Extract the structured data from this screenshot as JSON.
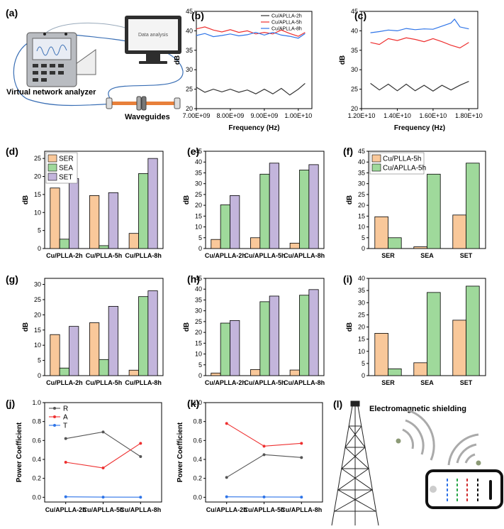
{
  "colors": {
    "ser": "#f9c89a",
    "sea": "#9fd99b",
    "set": "#c3b5dc",
    "r": "#555555",
    "a": "#ee3030",
    "t": "#2e74e8",
    "l2": "#333333",
    "l5": "#ee3030",
    "l8": "#2e74e8"
  },
  "schematic": {
    "label": "(a)",
    "monitor_text": "Data analysis",
    "analyzer_label": "Virtual network analyzer",
    "waveguide_label": "Waveguides"
  },
  "illustration": {
    "label": "(l)",
    "title": "Electromagnetic shielding"
  },
  "chart_data": [
    {
      "id": "b",
      "label": "(b)",
      "type": "line",
      "xlabel": "Frequency (Hz)",
      "ylabel": "dB",
      "xlim": [
        7000000000.0,
        10400000000.0
      ],
      "ylim": [
        20,
        45
      ],
      "xticks": [
        7000000000.0,
        8000000000.0,
        9000000000.0,
        10000000000.0
      ],
      "xtick_labels": [
        "7.00E+09",
        "8.00E+09",
        "9.00E+09",
        "1.00E+10"
      ],
      "yticks": [
        20,
        25,
        30,
        35,
        40,
        45
      ],
      "series": [
        {
          "name": "Cu/APLLA-2h",
          "color_key": "l2",
          "x": [
            7000000000.0,
            7250000000.0,
            7500000000.0,
            7750000000.0,
            8000000000.0,
            8250000000.0,
            8500000000.0,
            8750000000.0,
            9000000000.0,
            9250000000.0,
            9500000000.0,
            9750000000.0,
            10000000000.0,
            10200000000.0
          ],
          "y": [
            25.5,
            24.2,
            25.0,
            24.3,
            25.0,
            24.2,
            24.8,
            23.8,
            25.0,
            23.8,
            25.2,
            23.5,
            25.0,
            26.5
          ]
        },
        {
          "name": "Cu/APLLA-5h",
          "color_key": "l5",
          "x": [
            7000000000.0,
            7250000000.0,
            7500000000.0,
            7750000000.0,
            8000000000.0,
            8250000000.0,
            8500000000.0,
            8750000000.0,
            9000000000.0,
            9250000000.0,
            9500000000.0,
            9750000000.0,
            10000000000.0,
            10200000000.0
          ],
          "y": [
            40.5,
            41.0,
            40.2,
            39.7,
            40.3,
            39.6,
            40.0,
            39.2,
            39.6,
            39.2,
            40.2,
            39.3,
            38.6,
            39.6
          ]
        },
        {
          "name": "Cu/APLLA-8h",
          "color_key": "l8",
          "x": [
            7000000000.0,
            7250000000.0,
            7500000000.0,
            7750000000.0,
            8000000000.0,
            8250000000.0,
            8500000000.0,
            8750000000.0,
            9000000000.0,
            9250000000.0,
            9500000000.0,
            9750000000.0,
            10000000000.0,
            10200000000.0
          ],
          "y": [
            38.8,
            39.3,
            38.5,
            38.8,
            39.2,
            38.7,
            39.0,
            39.6,
            38.9,
            39.6,
            38.9,
            38.6,
            38.1,
            39.3
          ]
        }
      ]
    },
    {
      "id": "c",
      "label": "(c)",
      "type": "line",
      "xlabel": "Frequency (Hz)",
      "ylabel": "dB",
      "xlim": [
        12000000000.0,
        18500000000.0
      ],
      "ylim": [
        20,
        45
      ],
      "xticks": [
        12000000000.0,
        14000000000.0,
        16000000000.0,
        18000000000.0
      ],
      "xtick_labels": [
        "1.20E+10",
        "1.40E+10",
        "1.60E+10",
        "1.80E+10"
      ],
      "yticks": [
        20,
        25,
        30,
        35,
        40,
        45
      ],
      "series": [
        {
          "name": "Cu/APLLA-2h",
          "color_key": "l2",
          "x": [
            12500000000.0,
            13000000000.0,
            13500000000.0,
            14000000000.0,
            14500000000.0,
            15000000000.0,
            15500000000.0,
            16000000000.0,
            16500000000.0,
            17000000000.0,
            17500000000.0,
            18000000000.0
          ],
          "y": [
            26.5,
            24.8,
            26.3,
            24.6,
            26.3,
            24.6,
            26.0,
            24.5,
            26.0,
            24.8,
            26.0,
            27.0
          ]
        },
        {
          "name": "Cu/APLLA-5h",
          "color_key": "l5",
          "x": [
            12500000000.0,
            13000000000.0,
            13500000000.0,
            14000000000.0,
            14500000000.0,
            15000000000.0,
            15500000000.0,
            16000000000.0,
            16500000000.0,
            17000000000.0,
            17500000000.0,
            18000000000.0
          ],
          "y": [
            37.0,
            36.5,
            38.0,
            37.5,
            38.2,
            37.8,
            37.2,
            38.0,
            37.2,
            36.3,
            35.6,
            37.0
          ]
        },
        {
          "name": "Cu/APLLA-8h",
          "color_key": "l8",
          "x": [
            12500000000.0,
            13000000000.0,
            13500000000.0,
            14000000000.0,
            14500000000.0,
            15000000000.0,
            15500000000.0,
            16000000000.0,
            16500000000.0,
            17000000000.0,
            17200000000.0,
            17500000000.0,
            18000000000.0
          ],
          "y": [
            39.5,
            39.8,
            40.2,
            40.0,
            40.6,
            40.3,
            40.5,
            40.4,
            41.2,
            42.0,
            43.0,
            41.0,
            40.5
          ]
        }
      ]
    },
    {
      "id": "d",
      "label": "(d)",
      "type": "bar",
      "ylabel": "dB",
      "ylim": [
        0,
        27
      ],
      "yticks": [
        0,
        5,
        10,
        15,
        20,
        25
      ],
      "categories": [
        "Cu/PLLA-2h",
        "Cu/PLLA-5h",
        "Cu/PLLA-8h"
      ],
      "legend": "top-left",
      "series": [
        {
          "name": "SER",
          "color_key": "ser",
          "values": [
            16.8,
            14.7,
            4.2
          ]
        },
        {
          "name": "SEA",
          "color_key": "sea",
          "values": [
            2.6,
            0.8,
            20.8
          ]
        },
        {
          "name": "SET",
          "color_key": "set",
          "values": [
            19.4,
            15.5,
            25.0
          ]
        }
      ]
    },
    {
      "id": "e",
      "label": "(e)",
      "type": "bar",
      "ylabel": "dB",
      "ylim": [
        0,
        45
      ],
      "yticks": [
        0,
        5,
        10,
        15,
        20,
        25,
        30,
        35,
        40,
        45
      ],
      "categories": [
        "Cu/APLLA-2h",
        "Cu/APLLA-5h",
        "Cu/APLLA-8h"
      ],
      "series": [
        {
          "name": "SER",
          "color_key": "ser",
          "values": [
            4.2,
            5.0,
            2.5
          ]
        },
        {
          "name": "SEA",
          "color_key": "sea",
          "values": [
            20.2,
            34.4,
            36.3
          ]
        },
        {
          "name": "SET",
          "color_key": "set",
          "values": [
            24.5,
            39.5,
            38.8
          ]
        }
      ]
    },
    {
      "id": "f",
      "label": "(f)",
      "type": "bar",
      "ylabel": "dB",
      "ylim": [
        0,
        45
      ],
      "yticks": [
        0,
        5,
        10,
        15,
        20,
        25,
        30,
        35,
        40,
        45
      ],
      "categories": [
        "SER",
        "SEA",
        "SET"
      ],
      "legend": "top-left",
      "series": [
        {
          "name": "Cu/PLLA-5h",
          "color_key": "ser",
          "values": [
            14.7,
            0.8,
            15.5
          ]
        },
        {
          "name": "Cu/APLLA-5h",
          "color_key": "sea",
          "values": [
            5.0,
            34.4,
            39.5
          ]
        }
      ]
    },
    {
      "id": "g",
      "label": "(g)",
      "type": "bar",
      "ylabel": "dB",
      "ylim": [
        0,
        32
      ],
      "yticks": [
        0,
        5,
        10,
        15,
        20,
        25,
        30
      ],
      "categories": [
        "Cu/PLLA-2h",
        "Cu/PLLA-5h",
        "Cu/PLLA-8h"
      ],
      "series": [
        {
          "name": "SER",
          "color_key": "ser",
          "values": [
            13.5,
            17.4,
            1.8
          ]
        },
        {
          "name": "SEA",
          "color_key": "sea",
          "values": [
            2.5,
            5.3,
            26.0
          ]
        },
        {
          "name": "SET",
          "color_key": "set",
          "values": [
            16.2,
            22.8,
            27.9
          ]
        }
      ]
    },
    {
      "id": "h",
      "label": "(h)",
      "type": "bar",
      "ylabel": "dB",
      "ylim": [
        0,
        45
      ],
      "yticks": [
        0,
        5,
        10,
        15,
        20,
        25,
        30,
        35,
        40,
        45
      ],
      "categories": [
        "Cu/APLLA-2h",
        "Cu/APLLA-5h",
        "Cu/APLLA-8h"
      ],
      "series": [
        {
          "name": "SER",
          "color_key": "ser",
          "values": [
            1.2,
            2.8,
            2.6
          ]
        },
        {
          "name": "SEA",
          "color_key": "sea",
          "values": [
            24.3,
            34.2,
            37.2
          ]
        },
        {
          "name": "SET",
          "color_key": "set",
          "values": [
            25.5,
            36.8,
            39.8
          ]
        }
      ]
    },
    {
      "id": "i",
      "label": "(i)",
      "type": "bar",
      "ylabel": "dB",
      "ylim": [
        0,
        40
      ],
      "yticks": [
        0,
        5,
        10,
        15,
        20,
        25,
        30,
        35,
        40
      ],
      "categories": [
        "SER",
        "SEA",
        "SET"
      ],
      "series": [
        {
          "name": "Cu/PLLA-5h",
          "color_key": "ser",
          "values": [
            17.4,
            5.3,
            22.8
          ]
        },
        {
          "name": "Cu/APLLA-5h",
          "color_key": "sea",
          "values": [
            2.8,
            34.2,
            36.8
          ]
        }
      ]
    },
    {
      "id": "j",
      "label": "(j)",
      "type": "line",
      "ylabel": "Power Coefficient",
      "ylim": [
        -0.05,
        1.0
      ],
      "yticks": [
        0.0,
        0.2,
        0.4,
        0.6,
        0.8,
        1.0
      ],
      "ytick_labels": [
        "0.0",
        "0.2",
        "0.4",
        "0.6",
        "0.8",
        "1.0"
      ],
      "categories": [
        "Cu/APLLA-2h",
        "Cu/APLLA-5h",
        "Cu/APLLA-8h"
      ],
      "legend": "top-left",
      "series": [
        {
          "name": "R",
          "color_key": "r",
          "values": [
            0.62,
            0.69,
            0.43
          ]
        },
        {
          "name": "A",
          "color_key": "a",
          "values": [
            0.37,
            0.31,
            0.57
          ]
        },
        {
          "name": "T",
          "color_key": "t",
          "values": [
            0.005,
            0.002,
            0.001
          ]
        }
      ]
    },
    {
      "id": "k",
      "label": "(k)",
      "type": "line",
      "ylabel": "Power Coefficient",
      "ylim": [
        -0.05,
        1.0
      ],
      "yticks": [
        0.0,
        0.2,
        0.4,
        0.6,
        0.8,
        1.0
      ],
      "ytick_labels": [
        "0.0",
        "0.2",
        "0.4",
        "0.6",
        "0.8",
        "1.0"
      ],
      "categories": [
        "Cu/APLLA-2h",
        "Cu/APLLA-5h",
        "Cu/APLLA-8h"
      ],
      "series": [
        {
          "name": "R",
          "color_key": "r",
          "values": [
            0.21,
            0.45,
            0.42
          ]
        },
        {
          "name": "A",
          "color_key": "a",
          "values": [
            0.78,
            0.54,
            0.57
          ]
        },
        {
          "name": "T",
          "color_key": "t",
          "values": [
            0.005,
            0.003,
            0.002
          ]
        }
      ]
    }
  ]
}
